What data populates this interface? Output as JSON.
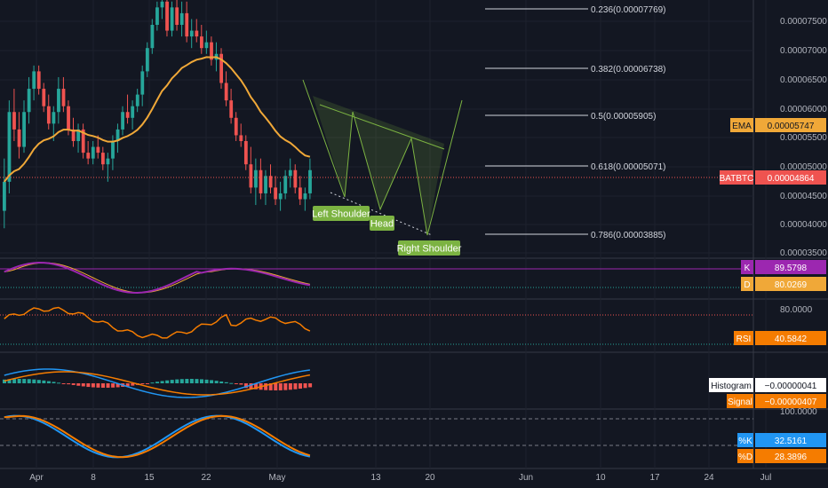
{
  "chart_data": {
    "type": "candlestick",
    "symbol": "BATBTC",
    "x_ticks": [
      "Apr",
      "8",
      "15",
      "22",
      "May",
      "13",
      "20",
      "Jun",
      "10",
      "17",
      "24",
      "Jul"
    ],
    "y_ticks": [
      "0.00007500",
      "0.00007000",
      "0.00006500",
      "0.00006000",
      "0.00005500",
      "0.00005000",
      "0.00004500",
      "0.00004000",
      "0.00003500"
    ],
    "last_price": "0.00004864",
    "ema": {
      "label": "EMA",
      "value": "0.00005747"
    },
    "fib_levels": [
      {
        "ratio": "0.236",
        "label": "0.236(0.00007769)"
      },
      {
        "ratio": "0.382",
        "label": "0.382(0.00006738)"
      },
      {
        "ratio": "0.5",
        "label": "0.5(0.00005905)"
      },
      {
        "ratio": "0.618",
        "label": "0.618(0.00005071)"
      },
      {
        "ratio": "0.786",
        "label": "0.786(0.00003885)"
      }
    ],
    "pattern_labels": [
      "Left Shoulder",
      "Head",
      "Right Shoulder"
    ],
    "candles": [
      [
        43,
        52,
        40,
        48
      ],
      [
        48,
        62,
        46,
        60
      ],
      [
        60,
        64,
        55,
        57
      ],
      [
        57,
        60,
        52,
        54
      ],
      [
        54,
        62,
        53,
        60
      ],
      [
        60,
        66,
        58,
        64
      ],
      [
        64,
        68,
        62,
        67
      ],
      [
        67,
        68,
        63,
        64
      ],
      [
        64,
        65,
        60,
        61
      ],
      [
        61,
        63,
        57,
        58
      ],
      [
        58,
        61,
        55,
        60
      ],
      [
        60,
        66,
        58,
        64
      ],
      [
        64,
        66,
        60,
        61
      ],
      [
        61,
        62,
        56,
        57
      ],
      [
        57,
        59,
        54,
        55
      ],
      [
        55,
        58,
        53,
        57
      ],
      [
        57,
        58,
        52,
        53
      ],
      [
        53,
        55,
        51,
        52
      ],
      [
        52,
        55,
        51,
        54
      ],
      [
        54,
        56,
        52,
        53
      ],
      [
        53,
        54,
        50,
        51
      ],
      [
        51,
        53,
        48,
        52
      ],
      [
        52,
        56,
        50,
        55
      ],
      [
        55,
        58,
        53,
        57
      ],
      [
        57,
        61,
        56,
        60
      ],
      [
        60,
        63,
        58,
        59
      ],
      [
        59,
        62,
        57,
        61
      ],
      [
        61,
        64,
        60,
        63
      ],
      [
        63,
        68,
        61,
        67
      ],
      [
        67,
        72,
        66,
        71
      ],
      [
        71,
        76,
        70,
        75
      ],
      [
        75,
        79,
        74,
        78
      ],
      [
        78,
        80,
        76,
        79
      ],
      [
        79,
        80,
        73,
        74
      ],
      [
        74,
        79,
        73,
        78
      ],
      [
        78,
        80,
        74,
        75
      ],
      [
        75,
        79,
        73,
        77
      ],
      [
        77,
        79,
        72,
        73
      ],
      [
        73,
        76,
        71,
        74
      ],
      [
        74,
        76,
        72,
        73
      ],
      [
        73,
        75,
        70,
        71
      ],
      [
        71,
        74,
        70,
        72
      ],
      [
        72,
        73,
        68,
        69
      ],
      [
        69,
        72,
        67,
        70
      ],
      [
        70,
        71,
        64,
        65
      ],
      [
        65,
        67,
        61,
        62
      ],
      [
        62,
        64,
        58,
        59
      ],
      [
        59,
        60,
        55,
        56
      ],
      [
        56,
        58,
        54,
        55
      ],
      [
        55,
        56,
        50,
        51
      ],
      [
        51,
        54,
        46,
        47
      ],
      [
        47,
        52,
        44,
        50
      ],
      [
        50,
        52,
        45,
        46
      ],
      [
        46,
        50,
        44,
        49
      ],
      [
        49,
        51,
        46,
        47
      ],
      [
        47,
        49,
        44,
        45
      ],
      [
        45,
        48,
        43,
        46
      ],
      [
        46,
        50,
        45,
        49
      ],
      [
        49,
        52,
        47,
        50
      ],
      [
        50,
        51,
        46,
        47
      ],
      [
        47,
        49,
        44,
        45
      ],
      [
        45,
        47,
        43,
        46
      ],
      [
        46,
        52,
        45,
        50
      ]
    ]
  },
  "price_axis": {
    "ema_tag": {
      "label": "EMA",
      "value": "0.00005747",
      "color": "#f0a838"
    },
    "symbol_tag": {
      "label": "BATBTC",
      "value": "0.00004864",
      "color": "#ef5350"
    }
  },
  "stoch_rsi_panel": {
    "k": {
      "label": "K",
      "value": "89.5798",
      "color": "#9c27b0"
    },
    "d": {
      "label": "D",
      "value": "80.0269",
      "color": "#f0a838"
    }
  },
  "rsi_panel": {
    "level": "80.0000",
    "rsi": {
      "label": "RSI",
      "value": "40.5842",
      "color": "#f57c00"
    }
  },
  "macd_panel": {
    "histogram": {
      "label": "Histogram",
      "value": "−0.00000041",
      "color": "#ffffff"
    },
    "signal": {
      "label": "Signal",
      "value": "−0.00000407",
      "color": "#f57c00"
    }
  },
  "stoch_panel": {
    "level": "100.0000",
    "k": {
      "label": "%K",
      "value": "32.5161",
      "color": "#2196f3"
    },
    "d": {
      "label": "%D",
      "value": "28.3896",
      "color": "#f57c00"
    }
  },
  "colors": {
    "up": "#26a69a",
    "down": "#ef5350",
    "ema": "#f0a838",
    "pattern": "#7cb342",
    "background": "#131722"
  }
}
